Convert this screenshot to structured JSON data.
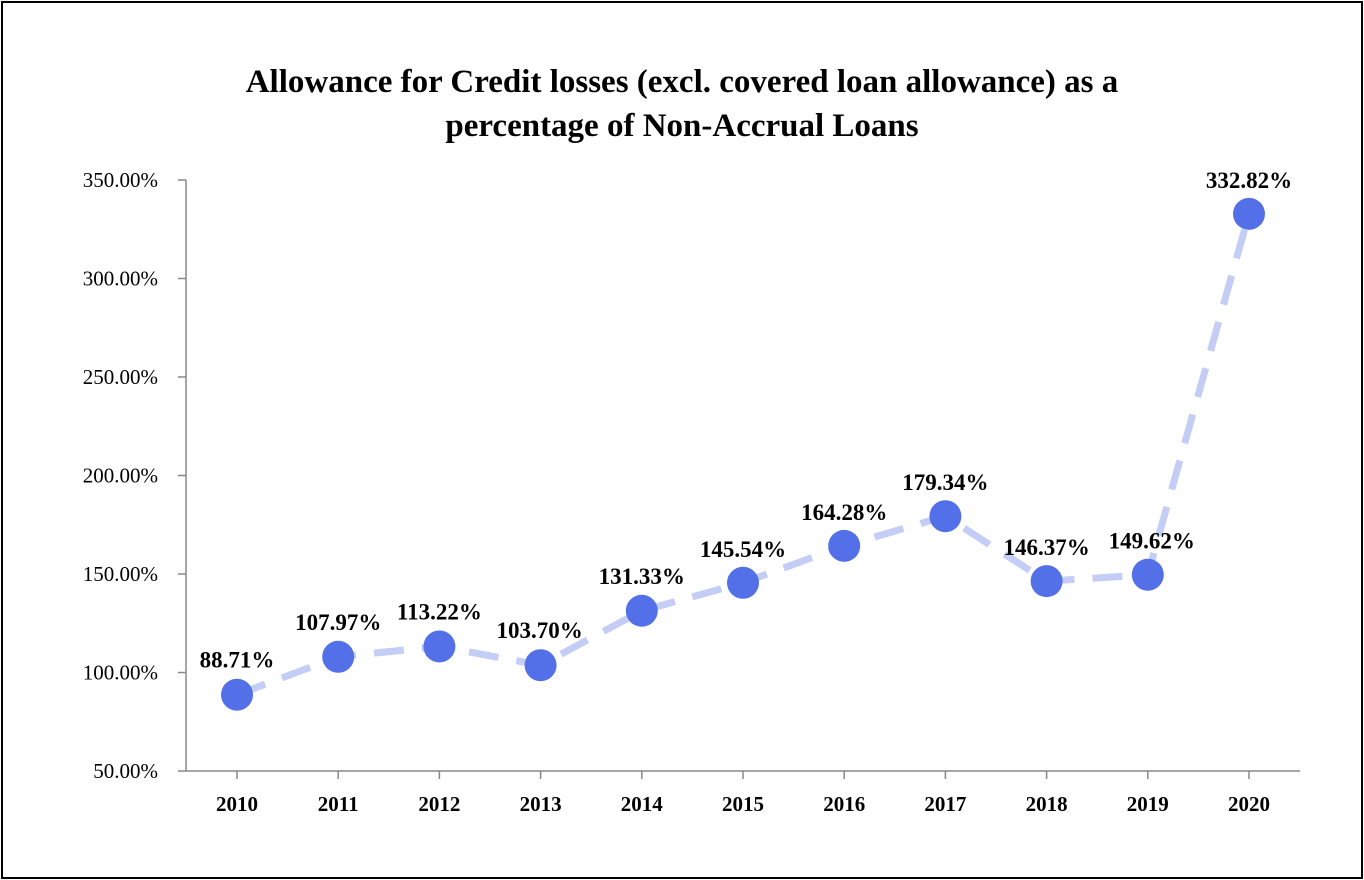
{
  "chart_data": {
    "type": "line",
    "title_line1": "Allowance for Credit losses (excl. covered loan allowance) as a",
    "title_line2": "percentage of Non-Accrual Loans",
    "xlabel": "",
    "ylabel": "",
    "categories": [
      "2010",
      "2011",
      "2012",
      "2013",
      "2014",
      "2015",
      "2016",
      "2017",
      "2018",
      "2019",
      "2020"
    ],
    "series": [
      {
        "values": [
          88.71,
          107.97,
          113.22,
          103.7,
          131.33,
          145.54,
          164.28,
          179.34,
          146.37,
          149.62,
          332.82
        ],
        "labels": [
          "88.71%",
          "107.97%",
          "113.22%",
          "103.70%",
          "131.33%",
          "145.54%",
          "164.28%",
          "179.34%",
          "146.37%",
          "149.62%",
          "332.82%"
        ]
      }
    ],
    "ylim": [
      50,
      350
    ],
    "yticks": [
      50,
      100,
      150,
      200,
      250,
      300,
      350
    ],
    "ytick_labels": [
      "50.00%",
      "100.00%",
      "150.00%",
      "200.00%",
      "250.00%",
      "300.00%",
      "350.00%"
    ],
    "grid": false,
    "legend": "none",
    "colors": {
      "marker": "#5470e8",
      "line": "#c3cdf5",
      "axis": "#888888"
    }
  }
}
